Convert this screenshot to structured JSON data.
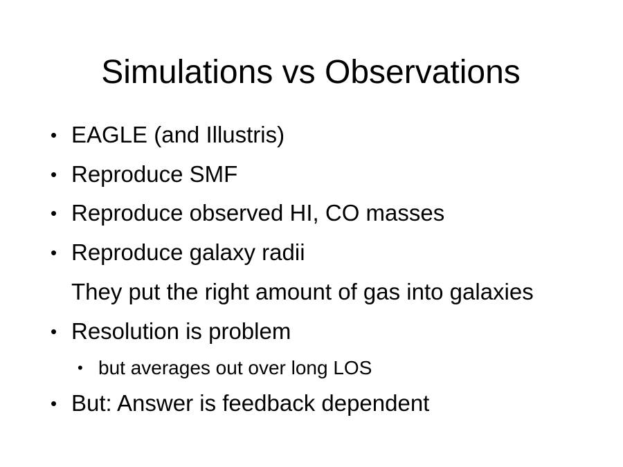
{
  "slide": {
    "title": "Simulations vs Observations",
    "bullet_glyph": "•",
    "items": [
      {
        "text": "EAGLE (and Illustris)",
        "level": 1,
        "bulleted": true
      },
      {
        "text": "Reproduce SMF",
        "level": 1,
        "bulleted": true
      },
      {
        "text": "Reproduce observed HI, CO masses",
        "level": 1,
        "bulleted": true
      },
      {
        "text": "Reproduce galaxy radii",
        "level": 1,
        "bulleted": true
      },
      {
        "text": "They put the right amount of gas into galaxies",
        "level": 1,
        "bulleted": false
      },
      {
        "text": "Resolution is problem",
        "level": 1,
        "bulleted": true
      },
      {
        "text": "but averages out over long LOS",
        "level": 2,
        "bulleted": true
      },
      {
        "text": "But: Answer is feedback dependent",
        "level": 1,
        "bulleted": true
      }
    ]
  }
}
